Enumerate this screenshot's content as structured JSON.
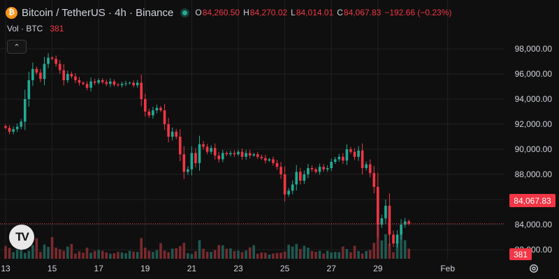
{
  "header": {
    "symbol": "Bitcoin / TetherUS",
    "interval": "4h",
    "exchange": "Binance",
    "icon": "btc-icon",
    "icon_glyph": "₿",
    "open_label": "O",
    "open": "84,260.50",
    "high_label": "H",
    "high": "84,270.02",
    "low_label": "L",
    "low": "84,014.01",
    "close_label": "C",
    "close": "84,067.83",
    "change": "−192.66 (−0.23%)"
  },
  "volume_legend": {
    "label": "Vol · BTC",
    "value": "381"
  },
  "price_tag": "84,067.83",
  "volume_tag": "381",
  "logo_text": "TV",
  "colors": {
    "up": "#22ab94",
    "down": "#f23645",
    "background": "#0f0f0f",
    "grid": "#222222",
    "axis_text": "#d1d4dc"
  },
  "chart_data": {
    "type": "candlestick",
    "title": "Bitcoin / TetherUS · 4h · Binance",
    "ylim": [
      81000,
      99000
    ],
    "y_ticks": [
      82000,
      84000,
      86000,
      88000,
      90000,
      92000,
      94000,
      96000,
      98000
    ],
    "y_tick_labels": [
      "82,000.00",
      "84,000.00",
      "86,000.00",
      "88,000.00",
      "90,000.00",
      "92,000.00",
      "94,000.00",
      "96,000.00",
      "98,000.00"
    ],
    "x_tick_labels": [
      "13",
      "15",
      "17",
      "19",
      "21",
      "23",
      "25",
      "27",
      "29",
      "Feb"
    ],
    "x_tick_index": [
      0,
      12,
      24,
      36,
      48,
      60,
      72,
      84,
      96,
      114
    ],
    "last_price": 84067.83,
    "last_volume": 381,
    "closes": [
      91700,
      91400,
      91600,
      91800,
      92200,
      94000,
      95500,
      96400,
      96100,
      95600,
      96800,
      97300,
      97200,
      96800,
      96300,
      95500,
      96000,
      95800,
      95500,
      95300,
      95200,
      94900,
      95400,
      95300,
      95500,
      95350,
      95200,
      95400,
      95150,
      95100,
      95200,
      95250,
      95300,
      95100,
      95300,
      94000,
      93000,
      92700,
      93100,
      93300,
      93100,
      92000,
      91000,
      91400,
      91000,
      89600,
      88200,
      88400,
      89700,
      88900,
      90400,
      90200,
      89800,
      90100,
      89500,
      89200,
      89700,
      89600,
      89700,
      89600,
      89800,
      89400,
      89700,
      89500,
      89600,
      89400,
      89300,
      89100,
      89200,
      88900,
      88600,
      88000,
      86400,
      86700,
      87200,
      88200,
      87500,
      88000,
      88500,
      88400,
      88200,
      88600,
      88400,
      88500,
      89000,
      89200,
      89400,
      89100,
      90000,
      89800,
      89400,
      89900,
      88500,
      88800,
      88100,
      87000,
      84000,
      84500,
      85500,
      83200,
      82500,
      83200,
      84000,
      84260.5,
      84067.83
    ],
    "volumes": [
      480,
      410,
      250,
      350,
      360,
      220,
      300,
      520,
      780,
      260,
      540,
      450,
      820,
      420,
      360,
      300,
      460,
      560,
      200,
      280,
      230,
      420,
      230,
      300,
      330,
      300,
      240,
      190,
      210,
      260,
      240,
      210,
      300,
      270,
      260,
      780,
      420,
      300,
      260,
      330,
      590,
      310,
      250,
      380,
      400,
      480,
      600,
      210,
      180,
      280,
      700,
      380,
      270,
      260,
      330,
      520,
      510,
      380,
      390,
      290,
      310,
      250,
      310,
      430,
      510,
      190,
      240,
      230,
      160,
      200,
      220,
      230,
      270,
      530,
      460,
      560,
      370,
      490,
      420,
      290,
      260,
      300,
      200,
      300,
      240,
      260,
      250,
      460,
      370,
      250,
      490,
      290,
      200,
      290,
      330,
      600,
      1450,
      690,
      930,
      570,
      250,
      600,
      1120,
      700,
      381
    ]
  }
}
